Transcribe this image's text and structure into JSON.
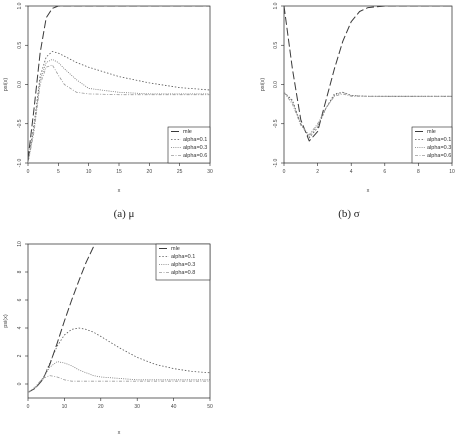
{
  "captions": {
    "a": "(a) μ",
    "b": "(b) σ"
  },
  "legend_labels": [
    "mle",
    "alpha=0.1",
    "alpha=0.3",
    "alpha=0.6"
  ],
  "legend_labels_c": [
    "mle",
    "alpha=0.1",
    "alpha=0.3",
    "alpha=0.8"
  ],
  "series_colors": [
    "#3a3a3a",
    "#555555",
    "#777777",
    "#9a9a9a"
  ],
  "chart_data": [
    {
      "type": "line",
      "xlabel": "x",
      "ylabel": "psi(x)",
      "xlim": [
        0,
        30
      ],
      "ylim": [
        -1.0,
        1.0
      ],
      "xticks": [
        0,
        5,
        10,
        15,
        20,
        25,
        30
      ],
      "yticks": [
        -1.0,
        -0.5,
        0.0,
        0.5,
        1.0
      ],
      "legend_position": "bottom-right",
      "series": [
        {
          "name": "mle",
          "x": [
            0,
            1,
            2,
            3,
            4,
            5,
            6,
            8,
            10,
            15,
            20,
            25,
            30
          ],
          "y": [
            -0.95,
            -0.3,
            0.4,
            0.85,
            0.97,
            1.0,
            1.0,
            1.0,
            1.0,
            1.0,
            1.0,
            1.0,
            1.0
          ]
        },
        {
          "name": "alpha=0.1",
          "x": [
            0,
            1,
            2,
            3,
            4,
            5,
            6,
            8,
            10,
            15,
            20,
            25,
            30
          ],
          "y": [
            -1.0,
            -0.5,
            0.1,
            0.35,
            0.42,
            0.4,
            0.36,
            0.28,
            0.22,
            0.1,
            0.02,
            -0.04,
            -0.07
          ]
        },
        {
          "name": "alpha=0.3",
          "x": [
            0,
            1,
            2,
            3,
            4,
            5,
            6,
            8,
            10,
            15,
            20,
            25,
            30
          ],
          "y": [
            -1.0,
            -0.55,
            0.05,
            0.28,
            0.32,
            0.28,
            0.2,
            0.06,
            -0.05,
            -0.1,
            -0.12,
            -0.12,
            -0.12
          ]
        },
        {
          "name": "alpha=0.6",
          "x": [
            0,
            1,
            2,
            3,
            4,
            5,
            6,
            8,
            10,
            15,
            20,
            25,
            30
          ],
          "y": [
            -1.0,
            -0.6,
            0.0,
            0.22,
            0.25,
            0.12,
            0.0,
            -0.1,
            -0.12,
            -0.13,
            -0.13,
            -0.13,
            -0.13
          ]
        }
      ]
    },
    {
      "type": "line",
      "xlabel": "x",
      "ylabel": "psi(x)",
      "xlim": [
        0,
        10
      ],
      "ylim": [
        -1.0,
        1.0
      ],
      "xticks": [
        0,
        2,
        4,
        6,
        8,
        10
      ],
      "yticks": [
        -1.0,
        -0.5,
        0.0,
        0.5,
        1.0
      ],
      "legend_position": "bottom-right",
      "series": [
        {
          "name": "mle",
          "x": [
            0,
            0.5,
            1.0,
            1.5,
            2.0,
            2.5,
            3.0,
            3.5,
            4.0,
            4.5,
            5.0,
            6.0,
            7.0,
            8.0,
            9.0,
            10.0
          ],
          "y": [
            1.0,
            0.2,
            -0.45,
            -0.72,
            -0.6,
            -0.2,
            0.2,
            0.55,
            0.8,
            0.93,
            0.98,
            1.0,
            1.0,
            1.0,
            1.0,
            1.0
          ]
        },
        {
          "name": "alpha=0.1",
          "x": [
            0,
            0.5,
            1.0,
            1.5,
            2.0,
            2.5,
            3.0,
            3.5,
            4.0,
            5.0,
            6.0,
            8.0,
            10.0
          ],
          "y": [
            -0.1,
            -0.2,
            -0.5,
            -0.68,
            -0.55,
            -0.3,
            -0.12,
            -0.1,
            -0.14,
            -0.15,
            -0.15,
            -0.15,
            -0.15
          ]
        },
        {
          "name": "alpha=0.3",
          "x": [
            0,
            0.5,
            1.0,
            1.5,
            2.0,
            2.5,
            3.0,
            3.5,
            4.0,
            5.0,
            6.0,
            8.0,
            10.0
          ],
          "y": [
            -0.1,
            -0.22,
            -0.5,
            -0.66,
            -0.52,
            -0.3,
            -0.14,
            -0.1,
            -0.14,
            -0.15,
            -0.15,
            -0.15,
            -0.15
          ]
        },
        {
          "name": "alpha=0.6",
          "x": [
            0,
            0.5,
            1.0,
            1.5,
            2.0,
            2.5,
            3.0,
            3.5,
            4.0,
            5.0,
            6.0,
            8.0,
            10.0
          ],
          "y": [
            -0.1,
            -0.25,
            -0.52,
            -0.64,
            -0.5,
            -0.3,
            -0.15,
            -0.12,
            -0.15,
            -0.15,
            -0.15,
            -0.15,
            -0.15
          ]
        }
      ]
    },
    {
      "type": "line",
      "xlabel": "x",
      "ylabel": "psi(x)",
      "xlim": [
        0,
        50
      ],
      "ylim": [
        -1,
        10
      ],
      "xticks": [
        0,
        10,
        20,
        30,
        40,
        50
      ],
      "yticks": [
        0,
        2,
        4,
        6,
        8,
        10
      ],
      "legend_position": "top-right",
      "series": [
        {
          "name": "mle",
          "x": [
            0,
            2,
            4,
            6,
            8,
            10,
            12,
            14,
            16,
            18,
            19
          ],
          "y": [
            -0.6,
            -0.3,
            0.3,
            1.4,
            2.9,
            4.5,
            6.0,
            7.4,
            8.7,
            9.8,
            10.3
          ]
        },
        {
          "name": "alpha=0.1",
          "x": [
            0,
            2,
            4,
            6,
            8,
            10,
            12,
            14,
            16,
            18,
            20,
            25,
            30,
            35,
            40,
            45,
            50
          ],
          "y": [
            -0.6,
            -0.3,
            0.3,
            1.5,
            2.7,
            3.5,
            3.9,
            4.0,
            3.9,
            3.7,
            3.4,
            2.6,
            1.9,
            1.4,
            1.1,
            0.9,
            0.8
          ]
        },
        {
          "name": "alpha=0.3",
          "x": [
            0,
            2,
            4,
            6,
            8,
            10,
            12,
            14,
            16,
            18,
            20,
            25,
            30,
            40,
            50
          ],
          "y": [
            -0.6,
            -0.3,
            0.4,
            1.2,
            1.6,
            1.5,
            1.3,
            1.0,
            0.8,
            0.6,
            0.5,
            0.4,
            0.3,
            0.3,
            0.3
          ]
        },
        {
          "name": "alpha=0.8",
          "x": [
            0,
            2,
            4,
            6,
            8,
            10,
            12,
            14,
            16,
            18,
            20,
            30,
            40,
            50
          ],
          "y": [
            -0.6,
            -0.2,
            0.4,
            0.6,
            0.5,
            0.3,
            0.2,
            0.2,
            0.2,
            0.2,
            0.2,
            0.2,
            0.2,
            0.2
          ]
        }
      ]
    }
  ]
}
